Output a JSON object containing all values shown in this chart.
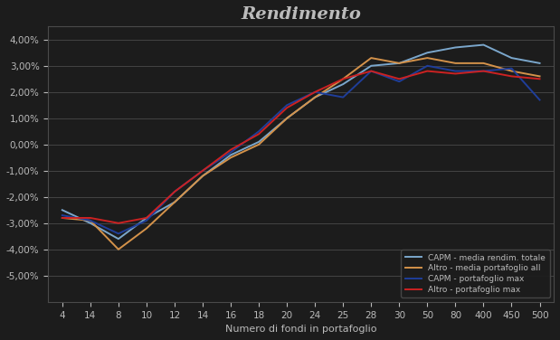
{
  "title": "Rendimento",
  "xlabel": "Numero di fondi in portafoglio",
  "ylabel": "",
  "ylim": [
    -0.06,
    0.045
  ],
  "yticks": [
    -0.05,
    -0.04,
    -0.03,
    -0.02,
    -0.01,
    0.0,
    0.01,
    0.02,
    0.03,
    0.04
  ],
  "x_tick_labels": [
    "4",
    "14",
    "8",
    "10",
    "12",
    "14",
    "16",
    "18",
    "20",
    "24",
    "25",
    "28",
    "30",
    "50",
    "80",
    "400",
    "450",
    "500"
  ],
  "series": {
    "light_blue": {
      "label": "CAPM - media rendim. totale",
      "color": "#7BA7CC",
      "y": [
        -0.025,
        -0.03,
        -0.036,
        -0.028,
        -0.022,
        -0.012,
        -0.004,
        0.001,
        0.01,
        0.018,
        0.023,
        0.03,
        0.031,
        0.035,
        0.037,
        0.038,
        0.033,
        0.031
      ]
    },
    "orange": {
      "label": "Altro - media portafoglio all",
      "color": "#D4924A",
      "y": [
        -0.028,
        -0.029,
        -0.04,
        -0.032,
        -0.022,
        -0.012,
        -0.005,
        0.0,
        0.01,
        0.018,
        0.025,
        0.033,
        0.031,
        0.033,
        0.031,
        0.031,
        0.028,
        0.026
      ]
    },
    "dark_blue": {
      "label": "CAPM - portafoglio max",
      "color": "#1F3E9A",
      "y": [
        -0.027,
        -0.029,
        -0.034,
        -0.029,
        -0.018,
        -0.01,
        -0.003,
        0.005,
        0.015,
        0.02,
        0.018,
        0.028,
        0.024,
        0.03,
        0.028,
        0.028,
        0.029,
        0.017
      ]
    },
    "red": {
      "label": "Altro - portafoglio max",
      "color": "#CC2222",
      "y": [
        -0.028,
        -0.028,
        -0.03,
        -0.028,
        -0.018,
        -0.01,
        -0.002,
        0.004,
        0.014,
        0.02,
        0.025,
        0.028,
        0.025,
        0.028,
        0.027,
        0.028,
        0.026,
        0.025
      ]
    }
  },
  "background_color": "#1C1C1C",
  "grid_color": "#4A4A4A",
  "text_color": "#BBBBBB",
  "title_fontsize": 14,
  "label_fontsize": 8,
  "tick_fontsize": 7.5
}
